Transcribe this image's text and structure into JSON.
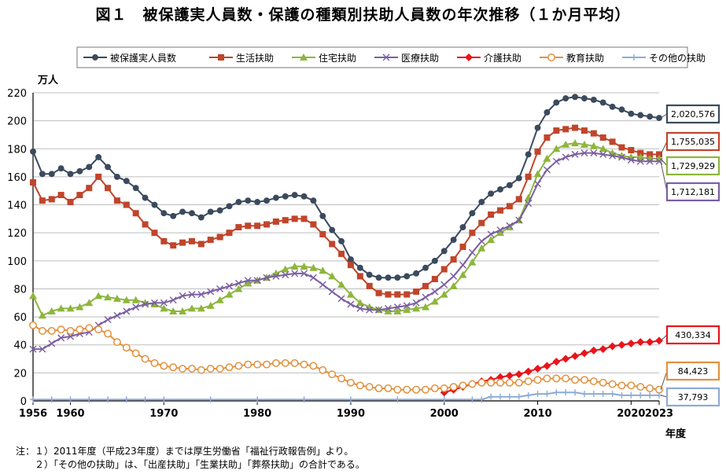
{
  "title": "図１　被保護実人員数・保護の種類別扶助人員数の年次推移（１か月平均）",
  "notes": [
    "注：１）2011年度（平成23年度）までは厚生労働省「福祉行政報告例」より。",
    "　　２）「その他の扶助」は、「出産扶助」「生業扶助」「葬祭扶助」の合計である。"
  ],
  "chart_data": {
    "type": "line",
    "ylabel": "万人",
    "xlabel": "年度",
    "ylim": [
      0,
      220
    ],
    "yticks": [
      0,
      20,
      40,
      60,
      80,
      100,
      120,
      140,
      160,
      180,
      200,
      220
    ],
    "xlim": [
      1956,
      2023
    ],
    "xticks": [
      1956,
      1960,
      1970,
      1980,
      1990,
      2000,
      2010,
      2020,
      2023
    ],
    "grid": true,
    "legend_position": "top",
    "series": [
      {
        "name": "被保護実人員数",
        "color": "#3b4a5c",
        "marker": "circle",
        "filled": true,
        "x": [
          1956,
          1957,
          1958,
          1959,
          1960,
          1961,
          1962,
          1963,
          1964,
          1965,
          1966,
          1967,
          1968,
          1969,
          1970,
          1971,
          1972,
          1973,
          1974,
          1975,
          1976,
          1977,
          1978,
          1979,
          1980,
          1981,
          1982,
          1983,
          1984,
          1985,
          1986,
          1987,
          1988,
          1989,
          1990,
          1991,
          1992,
          1993,
          1994,
          1995,
          1996,
          1997,
          1998,
          1999,
          2000,
          2001,
          2002,
          2003,
          2004,
          2005,
          2006,
          2007,
          2008,
          2009,
          2010,
          2011,
          2012,
          2013,
          2014,
          2015,
          2016,
          2017,
          2018,
          2019,
          2020,
          2021,
          2022,
          2023
        ],
        "y": [
          178,
          162,
          162,
          166,
          162,
          164,
          167,
          174,
          167,
          160,
          157,
          152,
          145,
          140,
          134,
          132,
          135,
          134,
          131,
          135,
          136,
          139,
          142,
          143,
          142,
          143,
          145,
          146,
          147,
          146,
          143,
          132,
          122,
          114,
          101,
          95,
          90,
          88,
          88,
          88,
          89,
          91,
          95,
          100,
          107,
          115,
          124,
          134,
          142,
          148,
          151,
          154,
          159,
          176,
          195,
          206,
          213,
          216,
          217,
          216,
          215,
          213,
          210,
          208,
          205,
          204,
          203,
          202
        ]
      },
      {
        "name": "生活扶助",
        "color": "#c0452b",
        "marker": "square",
        "filled": true,
        "x": [
          1956,
          1957,
          1958,
          1959,
          1960,
          1961,
          1962,
          1963,
          1964,
          1965,
          1966,
          1967,
          1968,
          1969,
          1970,
          1971,
          1972,
          1973,
          1974,
          1975,
          1976,
          1977,
          1978,
          1979,
          1980,
          1981,
          1982,
          1983,
          1984,
          1985,
          1986,
          1987,
          1988,
          1989,
          1990,
          1991,
          1992,
          1993,
          1994,
          1995,
          1996,
          1997,
          1998,
          1999,
          2000,
          2001,
          2002,
          2003,
          2004,
          2005,
          2006,
          2007,
          2008,
          2009,
          2010,
          2011,
          2012,
          2013,
          2014,
          2015,
          2016,
          2017,
          2018,
          2019,
          2020,
          2021,
          2022,
          2023
        ],
        "y": [
          156,
          143,
          144,
          147,
          142,
          147,
          152,
          160,
          152,
          143,
          140,
          134,
          126,
          120,
          114,
          111,
          113,
          114,
          112,
          115,
          117,
          120,
          124,
          125,
          125,
          126,
          128,
          129,
          130,
          130,
          126,
          119,
          112,
          105,
          97,
          89,
          82,
          77,
          76,
          76,
          76,
          78,
          82,
          87,
          94,
          101,
          110,
          120,
          127,
          133,
          136,
          139,
          144,
          160,
          178,
          188,
          193,
          194,
          195,
          193,
          191,
          188,
          185,
          181,
          179,
          177,
          176,
          176
        ]
      },
      {
        "name": "住宅扶助",
        "color": "#8db63c",
        "marker": "triangle",
        "filled": true,
        "x": [
          1956,
          1957,
          1958,
          1959,
          1960,
          1961,
          1962,
          1963,
          1964,
          1965,
          1966,
          1967,
          1968,
          1969,
          1970,
          1971,
          1972,
          1973,
          1974,
          1975,
          1976,
          1977,
          1978,
          1979,
          1980,
          1981,
          1982,
          1983,
          1984,
          1985,
          1986,
          1987,
          1988,
          1989,
          1990,
          1991,
          1992,
          1993,
          1994,
          1995,
          1996,
          1997,
          1998,
          1999,
          2000,
          2001,
          2002,
          2003,
          2004,
          2005,
          2006,
          2007,
          2008,
          2009,
          2010,
          2011,
          2012,
          2013,
          2014,
          2015,
          2016,
          2017,
          2018,
          2019,
          2020,
          2021,
          2022,
          2023
        ],
        "y": [
          75,
          61,
          64,
          66,
          66,
          67,
          70,
          75,
          74,
          73,
          72,
          72,
          70,
          69,
          66,
          64,
          64,
          66,
          66,
          68,
          72,
          76,
          80,
          84,
          86,
          88,
          91,
          94,
          96,
          96,
          95,
          93,
          89,
          83,
          76,
          70,
          67,
          65,
          64,
          64,
          65,
          66,
          67,
          71,
          76,
          82,
          90,
          99,
          109,
          115,
          120,
          124,
          129,
          145,
          162,
          173,
          180,
          183,
          184,
          183,
          182,
          180,
          177,
          175,
          174,
          174,
          173,
          173
        ]
      },
      {
        "name": "医療扶助",
        "color": "#7b5ea3",
        "marker": "x",
        "filled": false,
        "x": [
          1956,
          1957,
          1958,
          1959,
          1960,
          1961,
          1962,
          1963,
          1964,
          1965,
          1966,
          1967,
          1968,
          1969,
          1970,
          1971,
          1972,
          1973,
          1974,
          1975,
          1976,
          1977,
          1978,
          1979,
          1980,
          1981,
          1982,
          1983,
          1984,
          1985,
          1986,
          1987,
          1988,
          1989,
          1990,
          1991,
          1992,
          1993,
          1994,
          1995,
          1996,
          1997,
          1998,
          1999,
          2000,
          2001,
          2002,
          2003,
          2004,
          2005,
          2006,
          2007,
          2008,
          2009,
          2010,
          2011,
          2012,
          2013,
          2014,
          2015,
          2016,
          2017,
          2018,
          2019,
          2020,
          2021,
          2022,
          2023
        ],
        "y": [
          37,
          37,
          41,
          45,
          46,
          48,
          49,
          54,
          58,
          61,
          64,
          67,
          69,
          70,
          70,
          72,
          75,
          76,
          76,
          78,
          80,
          82,
          84,
          86,
          86,
          88,
          89,
          90,
          91,
          91,
          88,
          83,
          78,
          73,
          69,
          66,
          65,
          65,
          66,
          67,
          68,
          70,
          74,
          78,
          83,
          89,
          97,
          106,
          114,
          119,
          122,
          125,
          129,
          141,
          155,
          165,
          171,
          174,
          176,
          177,
          177,
          176,
          175,
          174,
          172,
          171,
          171,
          171
        ]
      },
      {
        "name": "介護扶助",
        "color": "#e8141c",
        "marker": "diamond",
        "filled": true,
        "x": [
          2000,
          2001,
          2002,
          2003,
          2004,
          2005,
          2006,
          2007,
          2008,
          2009,
          2010,
          2011,
          2012,
          2013,
          2014,
          2015,
          2016,
          2017,
          2018,
          2019,
          2020,
          2021,
          2022,
          2023
        ],
        "y": [
          6,
          8,
          10,
          12,
          14,
          15,
          17,
          18,
          19,
          21,
          23,
          25,
          28,
          30,
          32,
          34,
          36,
          37,
          39,
          40,
          41,
          42,
          42,
          43
        ]
      },
      {
        "name": "教育扶助",
        "color": "#e2913e",
        "marker": "circle",
        "filled": false,
        "x": [
          1956,
          1957,
          1958,
          1959,
          1960,
          1961,
          1962,
          1963,
          1964,
          1965,
          1966,
          1967,
          1968,
          1969,
          1970,
          1971,
          1972,
          1973,
          1974,
          1975,
          1976,
          1977,
          1978,
          1979,
          1980,
          1981,
          1982,
          1983,
          1984,
          1985,
          1986,
          1987,
          1988,
          1989,
          1990,
          1991,
          1992,
          1993,
          1994,
          1995,
          1996,
          1997,
          1998,
          1999,
          2000,
          2001,
          2002,
          2003,
          2004,
          2005,
          2006,
          2007,
          2008,
          2009,
          2010,
          2011,
          2012,
          2013,
          2014,
          2015,
          2016,
          2017,
          2018,
          2019,
          2020,
          2021,
          2022,
          2023
        ],
        "y": [
          54,
          50,
          50,
          51,
          50,
          51,
          52,
          51,
          48,
          42,
          38,
          34,
          30,
          27,
          25,
          24,
          23,
          23,
          22,
          23,
          23,
          24,
          25,
          26,
          26,
          26,
          27,
          27,
          27,
          26,
          25,
          22,
          19,
          16,
          13,
          11,
          10,
          9,
          9,
          8,
          8,
          8,
          8,
          9,
          9,
          10,
          11,
          12,
          13,
          13,
          13,
          13,
          13,
          14,
          15,
          16,
          16,
          16,
          15,
          15,
          14,
          13,
          12,
          11,
          11,
          10,
          9,
          8
        ]
      },
      {
        "name": "その他の扶助",
        "color": "#8eaad6",
        "marker": "plus",
        "filled": false,
        "x": [
          1956,
          1958,
          1960,
          1962,
          1964,
          1966,
          1968,
          1970,
          1975,
          1980,
          1985,
          1990,
          1995,
          2000,
          2003,
          2004,
          2005,
          2006,
          2007,
          2008,
          2009,
          2010,
          2011,
          2012,
          2013,
          2014,
          2015,
          2016,
          2017,
          2018,
          2019,
          2020,
          2021,
          2022,
          2023
        ],
        "y": [
          1,
          1,
          1,
          1,
          1,
          1,
          1,
          1,
          1,
          1,
          1,
          1,
          1,
          1,
          1,
          1,
          3,
          3,
          3,
          3,
          4,
          5,
          5,
          6,
          6,
          6,
          5,
          5,
          5,
          5,
          4,
          4,
          4,
          4,
          4
        ]
      }
    ],
    "callouts": [
      {
        "label": "2,020,576",
        "series": "被保護実人員数",
        "border": "#3b4a5c"
      },
      {
        "label": "1,755,035",
        "series": "生活扶助",
        "border": "#c0452b"
      },
      {
        "label": "1,729,929",
        "series": "住宅扶助",
        "border": "#8db63c"
      },
      {
        "label": "1,712,181",
        "series": "医療扶助",
        "border": "#7b5ea3"
      },
      {
        "label": "430,334",
        "series": "介護扶助",
        "border": "#e8141c"
      },
      {
        "label": "84,423",
        "series": "教育扶助",
        "border": "#e2913e"
      },
      {
        "label": "37,793",
        "series": "その他の扶助",
        "border": "#8eaad6"
      }
    ]
  }
}
